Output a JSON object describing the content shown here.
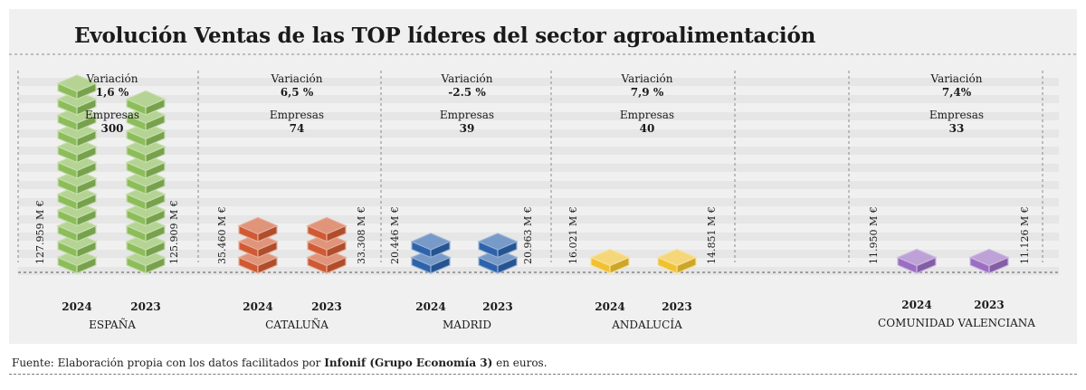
{
  "title": "Evolución Ventas de las TOP líderes del sector agroalimentación",
  "labels": {
    "variation": "Variación",
    "companies": "Empresas"
  },
  "source": {
    "prefix": "Fuente: Elaboración propia con los datos facilitados por ",
    "bold": "Infonif (Grupo Economía 3)",
    "suffix": " en euros."
  },
  "colors": {
    "España": "#8dbd5b",
    "Cataluña": "#cf5a33",
    "Madrid": "#2d63ab",
    "Andalucía": "#f0c232",
    "Comunidad Valenciana": "#9a6ec2",
    "background": "#f0f0f0"
  },
  "chart_data": {
    "type": "bar",
    "title": "Evolución Ventas de las TOP líderes del sector agroalimentación",
    "unit": "M €",
    "x_categories": [
      "2024",
      "2023"
    ],
    "groups": [
      {
        "region": "ESPAÑA",
        "values": [
          127959,
          125909
        ],
        "value_labels": [
          "127.959 M €",
          "125.909 M €"
        ],
        "variation": "1,6 %",
        "companies": "300"
      },
      {
        "region": "CATALUÑA",
        "values": [
          35460,
          33308
        ],
        "value_labels": [
          "35.460 M €",
          "33.308 M €"
        ],
        "variation": "6,5 %",
        "companies": "74"
      },
      {
        "region": "MADRID",
        "values": [
          20446,
          20963
        ],
        "value_labels": [
          "20.446 M €",
          "20.963 M €"
        ],
        "variation": "-2.5 %",
        "companies": "39"
      },
      {
        "region": "ANDALUCÍA",
        "values": [
          16021,
          14851
        ],
        "value_labels": [
          "16.021 M €",
          "14.851 M €"
        ],
        "variation": "7,9 %",
        "companies": "40"
      },
      {
        "region": "COMUNIDAD VALENCIANA",
        "values": [
          11950,
          11126
        ],
        "value_labels": [
          "11.950 M €",
          "11.126 M €"
        ],
        "variation": "7,4%",
        "companies": "33"
      }
    ]
  }
}
